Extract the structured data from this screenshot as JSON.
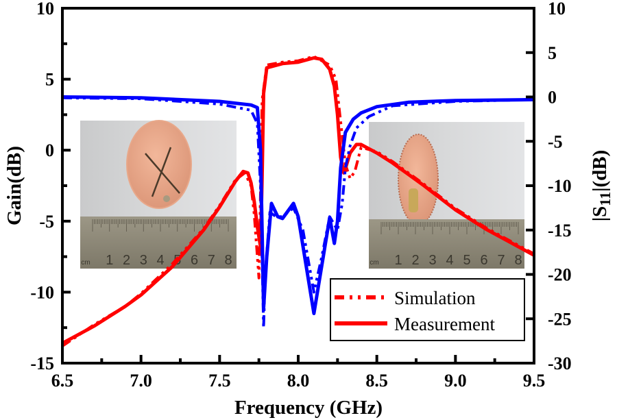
{
  "chart_data": {
    "type": "line",
    "title": "",
    "xlabel": "Frequency (GHz)",
    "ylabel_left": "Gain(dB)",
    "ylabel_right": "|S11|(dB)",
    "xlim": [
      6.5,
      9.5
    ],
    "ylim_left": [
      -15,
      10
    ],
    "ylim_right": [
      -30,
      10
    ],
    "x_ticks": [
      "6.5",
      "7.0",
      "7.5",
      "8.0",
      "8.5",
      "9.0",
      "9.5"
    ],
    "x_tick_values": [
      6.5,
      7.0,
      7.5,
      8.0,
      8.5,
      9.0,
      9.5
    ],
    "y_left_ticks": [
      "10",
      "5",
      "0",
      "-5",
      "-10",
      "-15"
    ],
    "y_left_tick_values": [
      10,
      5,
      0,
      -5,
      -10,
      -15
    ],
    "y_right_ticks": [
      "10",
      "5",
      "0",
      "-5",
      "-10",
      "-15",
      "-20",
      "-25",
      "-30"
    ],
    "y_right_tick_values": [
      10,
      5,
      0,
      -5,
      -10,
      -15,
      -20,
      -25,
      -30
    ],
    "grid": false,
    "legend": {
      "position": "bottom-right",
      "entries": [
        {
          "label": "Simulation",
          "style": "dash-dot-dot",
          "color": "#ff0000"
        },
        {
          "label": "Measurement",
          "style": "solid",
          "color": "#ff0000"
        }
      ]
    },
    "series": [
      {
        "name": "Gain Measurement",
        "axis": "left",
        "color": "#ff0000",
        "style": "solid",
        "x": [
          6.5,
          6.7,
          6.9,
          7.0,
          7.2,
          7.4,
          7.5,
          7.6,
          7.65,
          7.68,
          7.7,
          7.72,
          7.74,
          7.76,
          7.77,
          7.78,
          7.8,
          7.9,
          8.0,
          8.1,
          8.15,
          8.2,
          8.23,
          8.25,
          8.27,
          8.29,
          8.3,
          8.33,
          8.37,
          8.4,
          8.5,
          8.6,
          8.8,
          9.0,
          9.2,
          9.5
        ],
        "y": [
          -13.6,
          -12.4,
          -11.0,
          -10.2,
          -8.2,
          -5.6,
          -4.0,
          -2.2,
          -1.5,
          -1.6,
          -2.3,
          -3.6,
          -5.4,
          -6.8,
          -2.0,
          4.0,
          5.8,
          6.1,
          6.2,
          6.5,
          6.4,
          5.7,
          4.5,
          2.5,
          -0.5,
          -1.6,
          -1.3,
          -0.2,
          0.4,
          0.4,
          -0.2,
          -0.9,
          -2.5,
          -4.2,
          -5.6,
          -7.4
        ]
      },
      {
        "name": "Gain Simulation",
        "axis": "left",
        "color": "#ff0000",
        "style": "dash-dot-dot",
        "x": [
          6.5,
          6.7,
          6.9,
          7.0,
          7.2,
          7.4,
          7.5,
          7.6,
          7.66,
          7.7,
          7.72,
          7.74,
          7.75,
          7.76,
          7.77,
          7.8,
          7.9,
          8.0,
          8.1,
          8.2,
          8.24,
          8.27,
          8.3,
          8.33,
          8.36,
          8.4,
          8.5,
          8.6,
          8.8,
          9.0,
          9.2,
          9.5
        ],
        "y": [
          -13.8,
          -12.3,
          -11.0,
          -10.1,
          -8.0,
          -5.5,
          -3.9,
          -2.1,
          -1.6,
          -2.5,
          -4.5,
          -7.5,
          -9.0,
          -3.0,
          3.5,
          6.0,
          6.2,
          6.3,
          6.6,
          6.0,
          5.0,
          2.0,
          -1.0,
          -2.0,
          -1.5,
          0.2,
          -0.1,
          -0.8,
          -2.4,
          -4.1,
          -5.5,
          -7.3
        ]
      },
      {
        "name": "S11 Measurement",
        "axis": "right",
        "color": "#0000ff",
        "style": "solid",
        "x": [
          6.5,
          7.0,
          7.5,
          7.7,
          7.74,
          7.76,
          7.77,
          7.78,
          7.8,
          7.83,
          7.87,
          7.9,
          7.97,
          8.0,
          8.05,
          8.1,
          8.15,
          8.2,
          8.23,
          8.25,
          8.27,
          8.3,
          8.35,
          8.4,
          8.5,
          8.7,
          9.0,
          9.5
        ],
        "y": [
          0.0,
          -0.1,
          -0.5,
          -0.9,
          -1.2,
          -6.0,
          -15.0,
          -23.8,
          -18.0,
          -12.0,
          -13.5,
          -13.7,
          -12.0,
          -13.5,
          -19.0,
          -24.4,
          -19.0,
          -13.6,
          -16.5,
          -14.0,
          -8.0,
          -4.0,
          -2.5,
          -1.8,
          -1.1,
          -0.6,
          -0.4,
          -0.3
        ]
      },
      {
        "name": "S11 Simulation",
        "axis": "right",
        "color": "#0000ff",
        "style": "dash-dot-dot",
        "x": [
          6.5,
          7.0,
          7.5,
          7.7,
          7.74,
          7.76,
          7.78,
          7.79,
          7.82,
          7.86,
          7.9,
          7.97,
          8.03,
          8.1,
          8.15,
          8.2,
          8.25,
          8.28,
          8.3,
          8.33,
          8.37,
          8.45,
          8.6,
          9.0,
          9.5
        ],
        "y": [
          -0.1,
          -0.2,
          -0.8,
          -1.5,
          -3.0,
          -10.0,
          -26.0,
          -20.0,
          -13.0,
          -13.5,
          -13.5,
          -12.5,
          -15.0,
          -22.0,
          -18.0,
          -13.5,
          -15.0,
          -12.0,
          -8.0,
          -5.5,
          -3.5,
          -2.2,
          -1.0,
          -0.5,
          -0.3
        ]
      }
    ],
    "insets": [
      {
        "name": "left-antenna-photo",
        "ruler_labels": [
          "cm",
          "1",
          "2",
          "3",
          "4",
          "5",
          "6",
          "7",
          "8"
        ]
      },
      {
        "name": "right-antenna-photo",
        "ruler_labels": [
          "cm",
          "1",
          "2",
          "3",
          "4",
          "5",
          "6",
          "7",
          "8"
        ]
      }
    ]
  }
}
